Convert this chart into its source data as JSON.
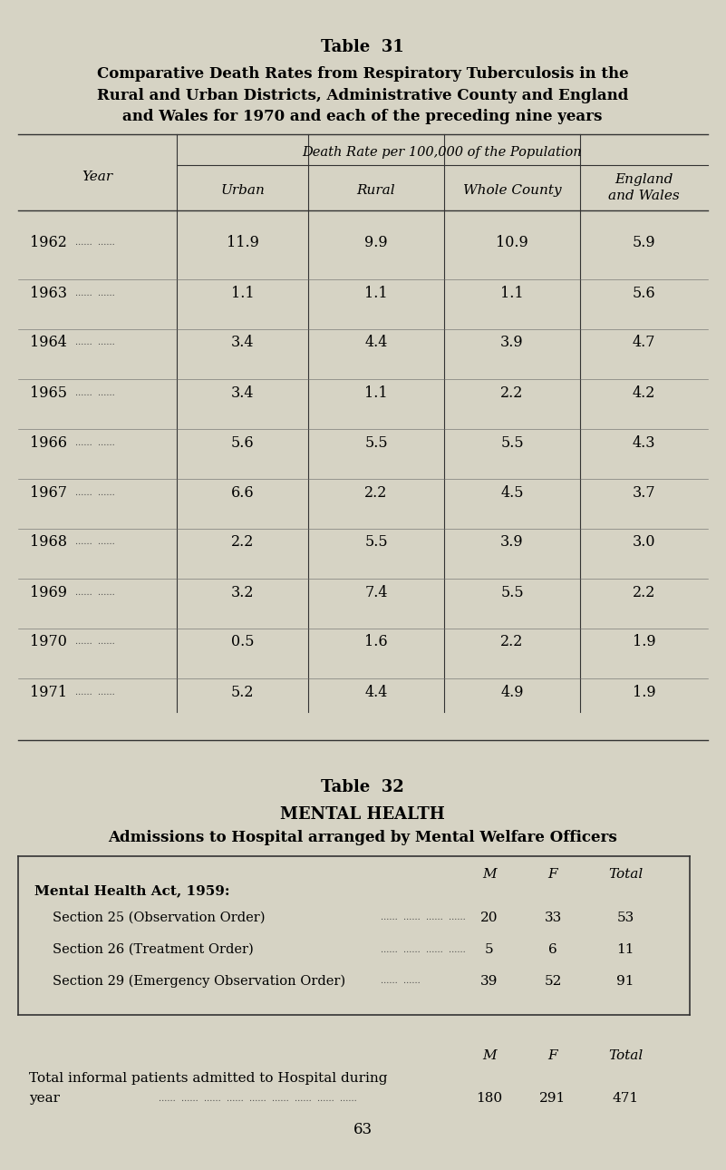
{
  "bg_color": "#d6d3c4",
  "page_width": 8.01,
  "page_height": 12.9,
  "table31_title": "Table  31",
  "table31_subtitle": "Comparative Death Rates from Respiratory Tuberculosis in the\nRural and Urban Districts, Administrative County and England\nand Wales for 1970 and each of the preceding nine years",
  "col_header_italic": "Death Rate per 100,000 of the Population",
  "col_year": "Year",
  "col_urban": "Urban",
  "col_rural": "Rural",
  "col_whole": "Whole County",
  "col_england": "England\nand Wales",
  "years": [
    "1962",
    "1963",
    "1964",
    "1965",
    "1966",
    "1967",
    "1968",
    "1969",
    "1970",
    "1971"
  ],
  "urban": [
    "11.9",
    "1.1",
    "3.4",
    "3.4",
    "5.6",
    "6.6",
    "2.2",
    "3.2",
    "0.5",
    "5.2"
  ],
  "rural": [
    "9.9",
    "1.1",
    "4.4",
    "1.1",
    "5.5",
    "2.2",
    "5.5",
    "7.4",
    "1.6",
    "4.4"
  ],
  "whole": [
    "10.9",
    "1.1",
    "3.9",
    "2.2",
    "5.5",
    "4.5",
    "3.9",
    "5.5",
    "2.2",
    "4.9"
  ],
  "england": [
    "5.9",
    "5.6",
    "4.7",
    "4.2",
    "4.3",
    "3.7",
    "3.0",
    "2.2",
    "1.9",
    "1.9"
  ],
  "table32_title": "Table  32",
  "table32_subtitle": "MENTAL HEALTH",
  "table32_sub2": "Admissions to Hospital arranged by Mental Welfare Officers",
  "mh_act_label": "Mental Health Act, 1959:",
  "sections": [
    "Section 25 (Observation Order)",
    "Section 26 (Treatment Order)",
    "Section 29 (Emergency Observation Order)"
  ],
  "section_dots": [
    "......  ......  ......  ......",
    "......  ......  ......  ......",
    "......  ......"
  ],
  "mf_headers": [
    "M",
    "F",
    "Total"
  ],
  "section_data": [
    [
      20,
      33,
      53
    ],
    [
      5,
      6,
      11
    ],
    [
      39,
      52,
      91
    ]
  ],
  "informal_label1": "Total informal patients admitted to Hospital during",
  "informal_label2": "year",
  "informal_dots": "......  ......  ......  ......  ......  ......  ......  ......  ......",
  "informal_data": [
    180,
    291,
    471
  ],
  "page_number": "63"
}
